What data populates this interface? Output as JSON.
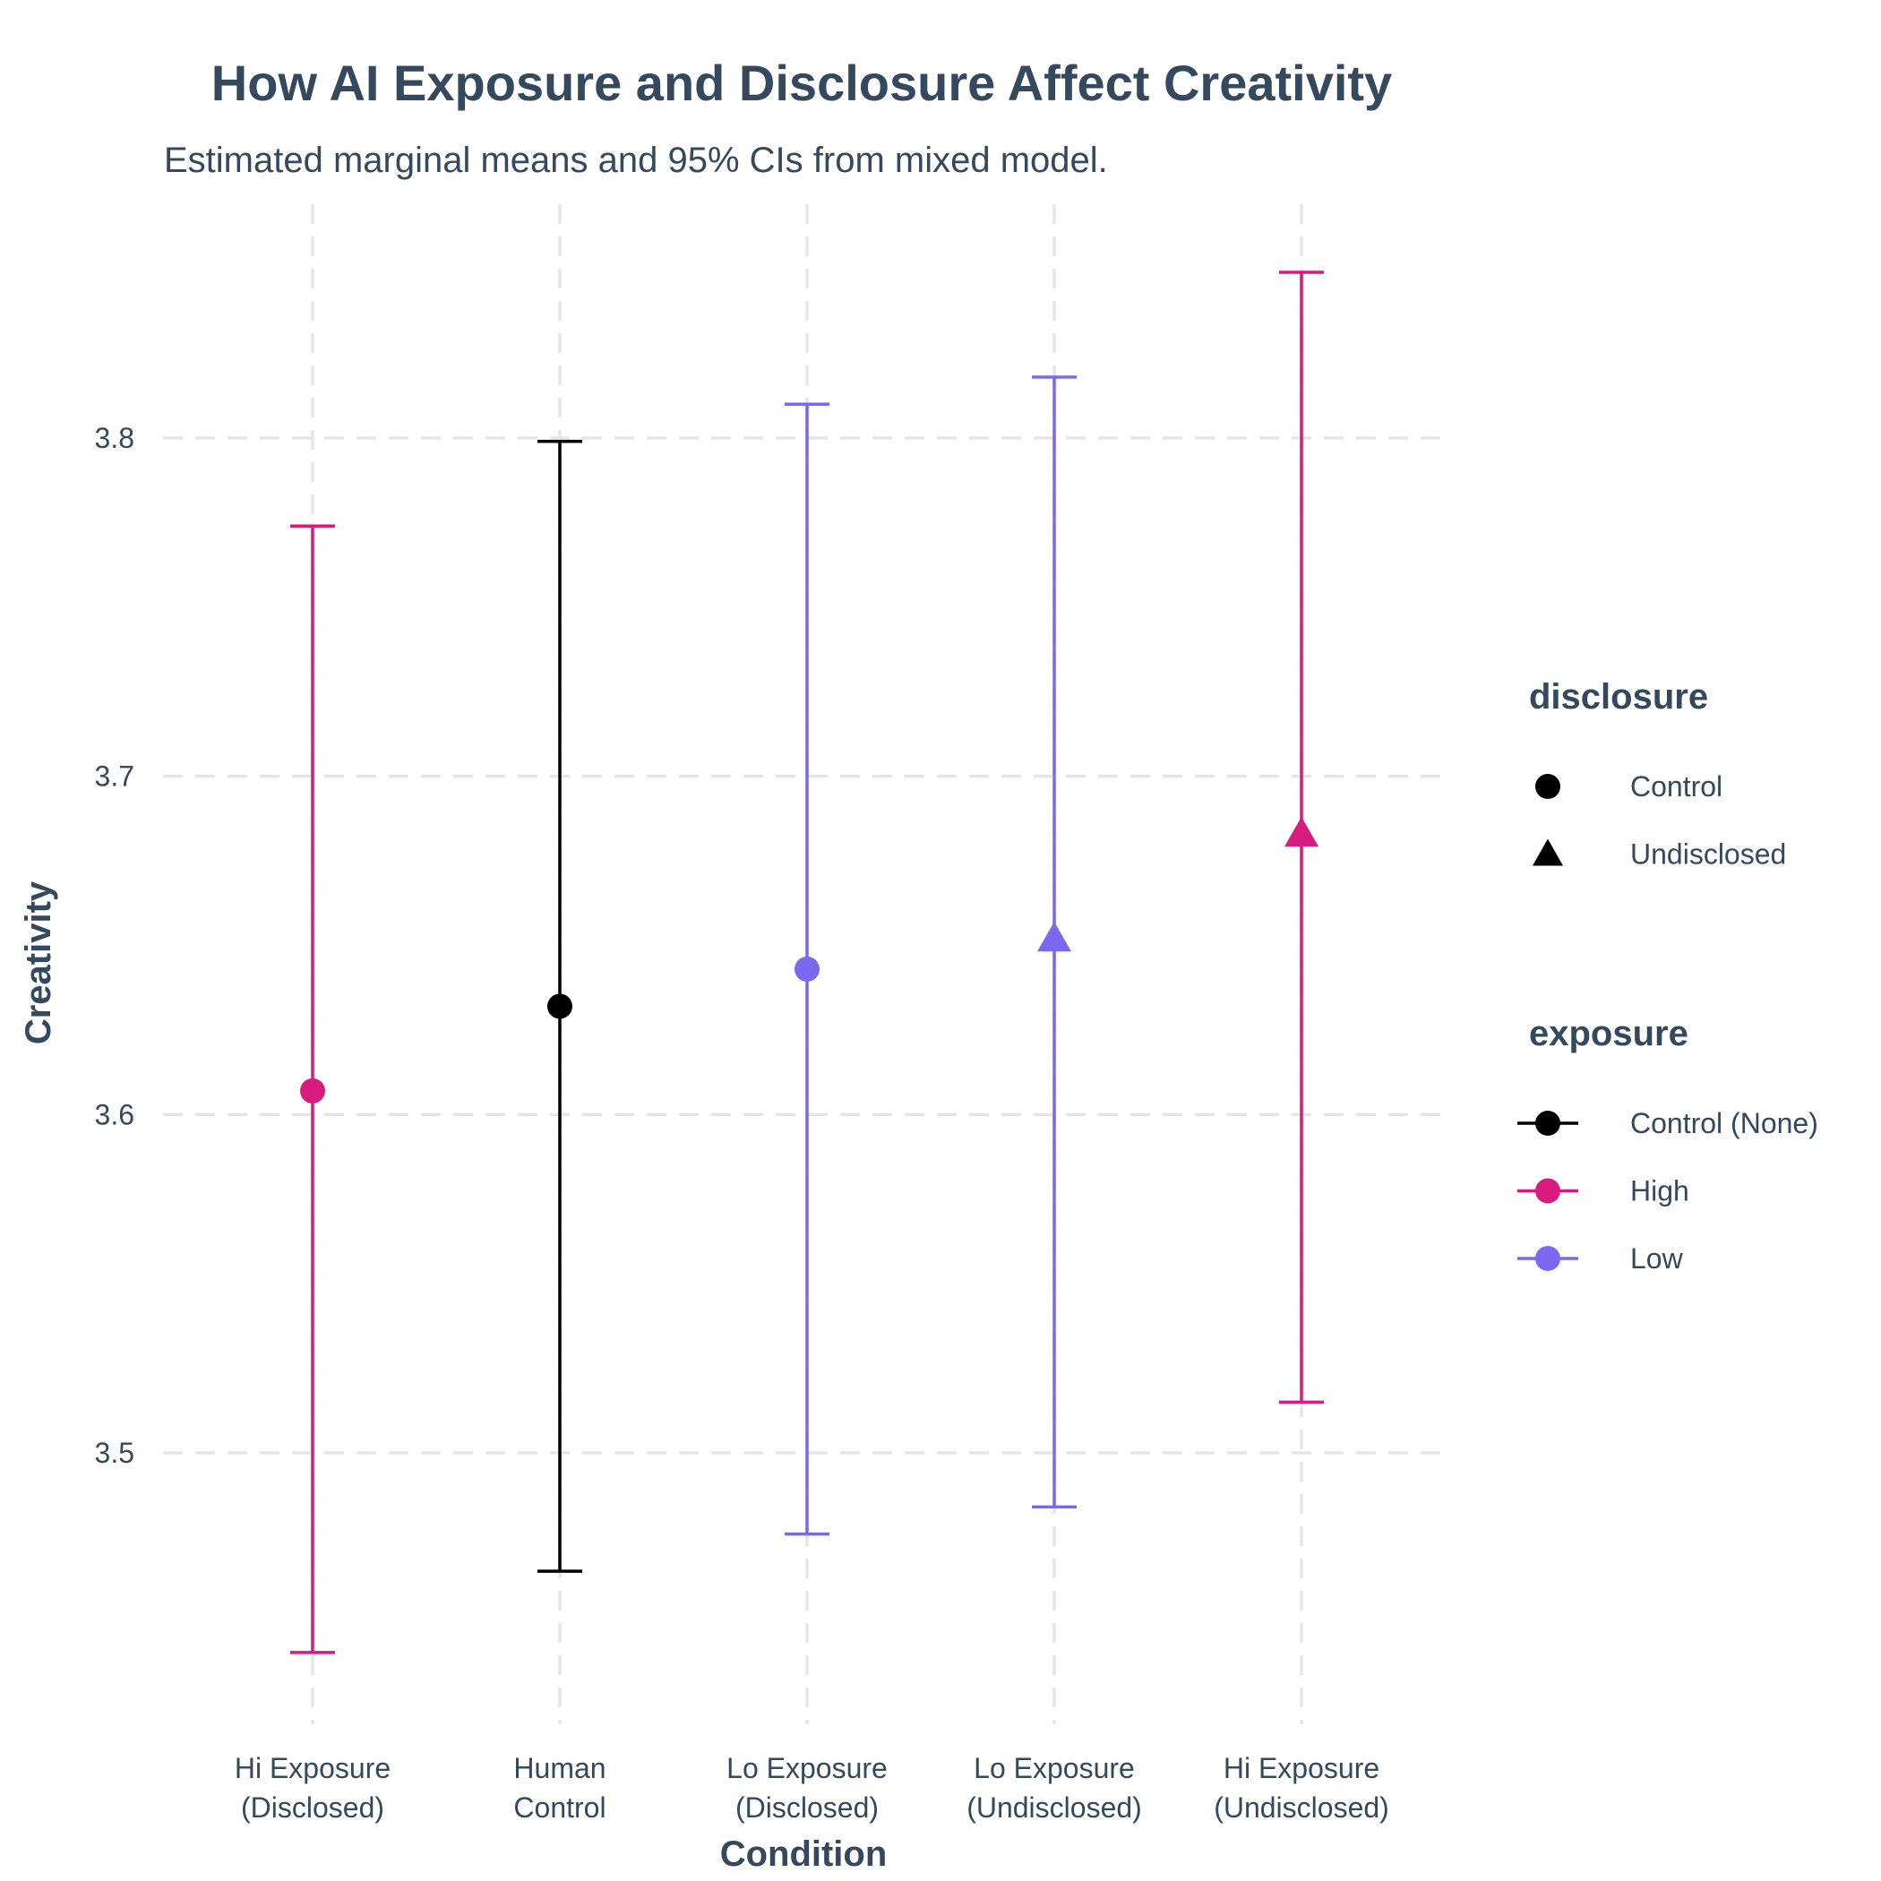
{
  "chart_data": {
    "type": "scatter",
    "title": "How AI Exposure and Disclosure Affect Creativity",
    "subtitle": "Estimated marginal means and 95% CIs from mixed model.",
    "xlabel": "Condition",
    "ylabel": "Creativity",
    "ylim": [
      3.44,
      3.87
    ],
    "yticks": [
      "3.5",
      "3.6",
      "3.7",
      "3.8"
    ],
    "grid": true,
    "legend_position": "right",
    "points": [
      {
        "category": [
          "Hi Exposure",
          "(Disclosed)"
        ],
        "mean": 3.607,
        "lower": 3.441,
        "upper": 3.774,
        "exposure": "High",
        "disclosure": "Control"
      },
      {
        "category": [
          "Human",
          "Control"
        ],
        "mean": 3.632,
        "lower": 3.465,
        "upper": 3.799,
        "exposure": "Control (None)",
        "disclosure": "Control"
      },
      {
        "category": [
          "Lo Exposure",
          "(Disclosed)"
        ],
        "mean": 3.643,
        "lower": 3.476,
        "upper": 3.81,
        "exposure": "Low",
        "disclosure": "Control"
      },
      {
        "category": [
          "Lo Exposure",
          "(Undisclosed)"
        ],
        "mean": 3.652,
        "lower": 3.484,
        "upper": 3.818,
        "exposure": "Low",
        "disclosure": "Undisclosed"
      },
      {
        "category": [
          "Hi Exposure",
          "(Undisclosed)"
        ],
        "mean": 3.683,
        "lower": 3.515,
        "upper": 3.849,
        "exposure": "High",
        "disclosure": "Undisclosed"
      }
    ],
    "legends": [
      {
        "title": "disclosure",
        "kind": "shape",
        "entries": [
          {
            "label": "Control",
            "shape": "circle"
          },
          {
            "label": "Undisclosed",
            "shape": "triangle"
          }
        ]
      },
      {
        "title": "exposure",
        "kind": "color",
        "entries": [
          {
            "label": "Control (None)",
            "color": "#000000"
          },
          {
            "label": "High",
            "color": "#D81B7F"
          },
          {
            "label": "Low",
            "color": "#7B68EE"
          }
        ]
      }
    ],
    "colors": {
      "Control (None)": "#000000",
      "High": "#D81B7F",
      "Low": "#7B68EE"
    },
    "shapes": {
      "Control": "circle",
      "Undisclosed": "triangle"
    }
  }
}
